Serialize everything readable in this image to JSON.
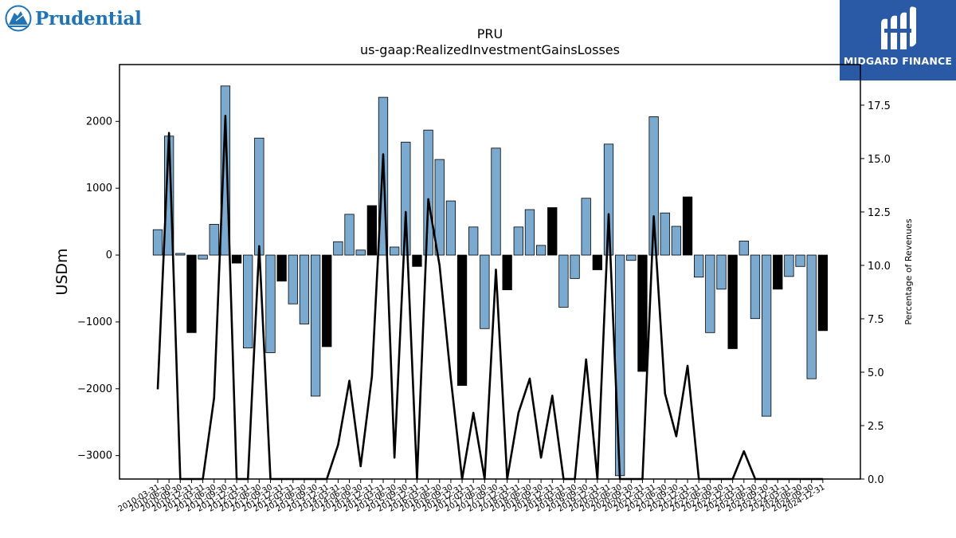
{
  "branding": {
    "left_logo_text": "Prudential",
    "right_logo_text": "MIDGARD FINANCE"
  },
  "colors": {
    "bar_positive_fill": "#7aaad0",
    "bar_negative_fill": "#000000",
    "line": "#000000",
    "partner_bg": "#2a5aa6",
    "brand_blue": "#1f73b7"
  },
  "chart_data": {
    "type": "bar",
    "title": "PRU",
    "subtitle": "us-gaap:RealizedInvestmentGainsLosses",
    "ylabel": "USDm",
    "y2label": "Percentage of Revenues",
    "ylim": [
      -3350,
      2850
    ],
    "y2lim": [
      0,
      19.4
    ],
    "yticks": [
      -3000,
      -2000,
      -1000,
      0,
      1000,
      2000
    ],
    "y2ticks": [
      0.0,
      2.5,
      5.0,
      7.5,
      10.0,
      12.5,
      15.0,
      17.5
    ],
    "categories": [
      "2010-03-31",
      "2010-06-30",
      "2010-09-30",
      "2010-12-31",
      "2011-03-31",
      "2011-06-30",
      "2011-09-30",
      "2011-12-31",
      "2012-03-31",
      "2012-06-30",
      "2012-09-30",
      "2012-12-31",
      "2013-03-31",
      "2013-06-30",
      "2013-09-30",
      "2013-12-31",
      "2014-03-31",
      "2014-06-30",
      "2014-09-30",
      "2014-12-31",
      "2015-03-31",
      "2015-06-30",
      "2015-09-30",
      "2015-12-31",
      "2016-03-31",
      "2016-06-30",
      "2016-09-30",
      "2016-12-31",
      "2017-03-31",
      "2017-06-30",
      "2017-09-30",
      "2017-12-31",
      "2018-03-31",
      "2018-06-30",
      "2018-09-30",
      "2018-12-31",
      "2019-03-31",
      "2019-06-30",
      "2019-09-30",
      "2019-12-31",
      "2020-03-31",
      "2020-06-30",
      "2020-09-30",
      "2020-12-31",
      "2021-03-31",
      "2021-06-30",
      "2021-09-30",
      "2021-12-31",
      "2022-03-31",
      "2022-06-30",
      "2022-09-30",
      "2022-12-31",
      "2023-03-31",
      "2023-06-30",
      "2023-09-30",
      "2023-12-31",
      "2024-03-31",
      "2024-06-30",
      "2024-09-30",
      "2024-12-31"
    ],
    "xtick_labels": [
      "2010-03-31",
      "2010-06-30",
      "2010-09-30",
      "2010-12-31",
      "2011-03-31",
      "2011-06-30",
      "2011-09-30",
      "2011-12-31",
      "2012-03-31",
      "2012-06-30",
      "2012-09-30",
      "2012-12-31",
      "2013-03-31",
      "2013-06-30",
      "2013-09-30",
      "2013-12-31",
      "2014-03-31",
      "2014-06-30",
      "2014-09-30",
      "2014-12-31",
      "2015-03-31",
      "2015-06-30",
      "2015-09-30",
      "2015-12-31",
      "2016-03-31",
      "2016-06-30",
      "2016-09-30",
      "2016-12-31",
      "2017-03-31",
      "2017-06-30",
      "2017-09-30",
      "2017-12-31",
      "2018-03-31",
      "2018-06-30",
      "2018-09-30",
      "2018-12-31",
      "2019-03-31",
      "2019-06-30",
      "2019-09-30",
      "2019-12-31",
      "2020-03-31",
      "2020-06-30",
      "2020-09-30",
      "2020-12-31",
      "2021-03-31",
      "2021-06-30",
      "2021-09-30",
      "2021-12-31",
      "2022-03-31",
      "2022-06-30",
      "2022-09-30",
      "2022-12-31",
      "2023-03-31",
      "2023-06-30",
      "2023-09-30",
      "2023-12-31",
      "2024-03-31",
      "2024-06-30",
      "2024-09-30",
      "2024-12-31"
    ],
    "values": [
      380,
      1780,
      25,
      -1160,
      -60,
      460,
      2530,
      -120,
      -1390,
      1750,
      -1460,
      -390,
      -730,
      -1030,
      -2110,
      -1370,
      200,
      610,
      75,
      740,
      2360,
      120,
      1690,
      -170,
      1870,
      1430,
      810,
      -1950,
      420,
      -1100,
      1600,
      -520,
      420,
      680,
      145,
      710,
      -780,
      -350,
      850,
      -220,
      1660,
      -3300,
      -80,
      -1740,
      2070,
      630,
      430,
      870,
      -330,
      -1160,
      -510,
      -1400,
      210,
      -950,
      -2410,
      -510,
      -320,
      -170,
      -1850,
      -1130
    ],
    "bar_colors": [
      "blue",
      "blue",
      "blue",
      "black",
      "blue",
      "blue",
      "blue",
      "black",
      "blue",
      "blue",
      "blue",
      "black",
      "blue",
      "blue",
      "blue",
      "black",
      "blue",
      "blue",
      "blue",
      "black",
      "blue",
      "blue",
      "blue",
      "black",
      "blue",
      "blue",
      "blue",
      "black",
      "blue",
      "blue",
      "blue",
      "black",
      "blue",
      "blue",
      "blue",
      "black",
      "blue",
      "blue",
      "blue",
      "black",
      "blue",
      "blue",
      "blue",
      "black",
      "blue",
      "blue",
      "blue",
      "black",
      "blue",
      "blue",
      "blue",
      "black",
      "blue",
      "blue",
      "blue",
      "black",
      "blue",
      "blue",
      "blue",
      "black"
    ],
    "series": [
      {
        "values": [
          380,
          1780,
          25,
          -1160,
          -60,
          460,
          2530,
          -120,
          -1390,
          1750,
          -1460,
          -390,
          -730,
          -1030,
          -2110,
          -1370,
          200,
          610,
          75,
          740,
          2360,
          120,
          1690,
          -170,
          1870,
          1430,
          810,
          -1950,
          420,
          -1100,
          1600,
          -520,
          420,
          680,
          145,
          710,
          -780,
          -350,
          850,
          -220,
          1660,
          -3300,
          -80,
          -1740,
          2070,
          630,
          430,
          870,
          -330,
          -1160,
          -510,
          -1400,
          210,
          -950,
          -2410,
          -510,
          -320,
          -170,
          -1850,
          -1130
        ]
      },
      {
        "axis": "right",
        "values": [
          4.2,
          16.2,
          0,
          0,
          0,
          3.8,
          17.0,
          0,
          0,
          10.9,
          0,
          0,
          0,
          0,
          0,
          0,
          1.6,
          4.6,
          0.6,
          4.8,
          15.2,
          1.0,
          12.5,
          0,
          13.1,
          10.0,
          4.7,
          0,
          3.1,
          0,
          9.8,
          0,
          3.1,
          4.7,
          1.0,
          3.9,
          0,
          0,
          5.6,
          0,
          12.4,
          0,
          0,
          0,
          12.3,
          4.0,
          2.0,
          5.3,
          0,
          0,
          0,
          0,
          1.3,
          0,
          0,
          0,
          0,
          0,
          0,
          0
        ]
      }
    ],
    "grid": false,
    "legend": "none"
  }
}
